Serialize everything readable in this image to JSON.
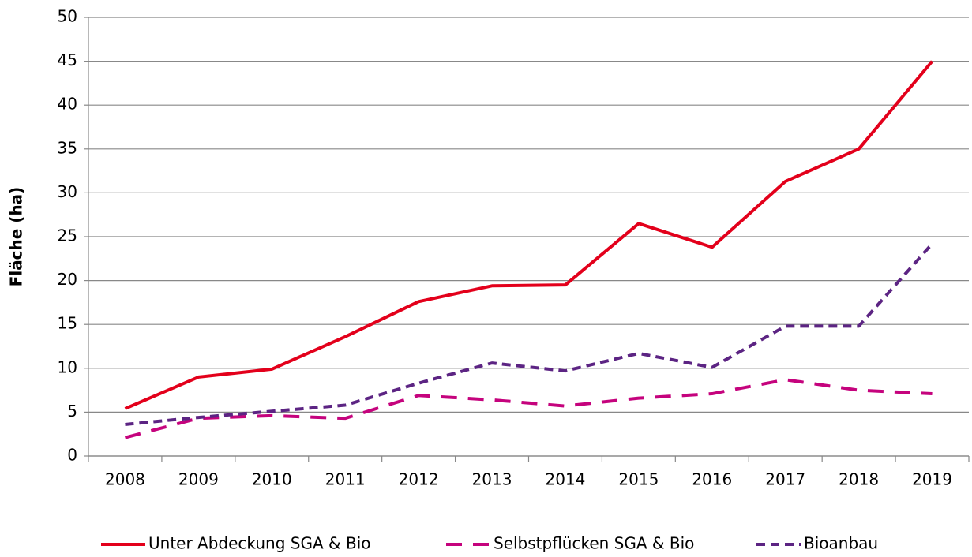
{
  "chart_data": {
    "type": "line",
    "ylabel": "Fläche (ha)",
    "categories": [
      "2008",
      "2009",
      "2010",
      "2011",
      "2012",
      "2013",
      "2014",
      "2015",
      "2016",
      "2017",
      "2018",
      "2019"
    ],
    "series": [
      {
        "name": "Unter Abdeckung SGA & Bio",
        "color": "#e3001b",
        "style": "solid",
        "values": [
          5.4,
          9.0,
          9.9,
          13.6,
          17.6,
          19.4,
          19.5,
          26.5,
          23.8,
          31.3,
          35.0,
          45.0
        ]
      },
      {
        "name": "Selbstpflücken SGA & Bio",
        "color": "#c5037d",
        "style": "dashed",
        "values": [
          2.1,
          4.3,
          4.6,
          4.3,
          6.9,
          6.4,
          5.7,
          6.6,
          7.1,
          8.7,
          7.5,
          7.1
        ]
      },
      {
        "name": "Bioanbau",
        "color": "#5c2483",
        "style": "short-dashed",
        "values": [
          3.6,
          4.4,
          5.1,
          5.8,
          8.3,
          10.6,
          9.7,
          11.7,
          10.1,
          14.8,
          14.8,
          24.2
        ]
      }
    ],
    "ylim": [
      0,
      50
    ],
    "yticks": [
      0,
      5,
      10,
      15,
      20,
      25,
      30,
      35,
      40,
      45,
      50
    ],
    "grid": true,
    "legend": "bottom"
  }
}
